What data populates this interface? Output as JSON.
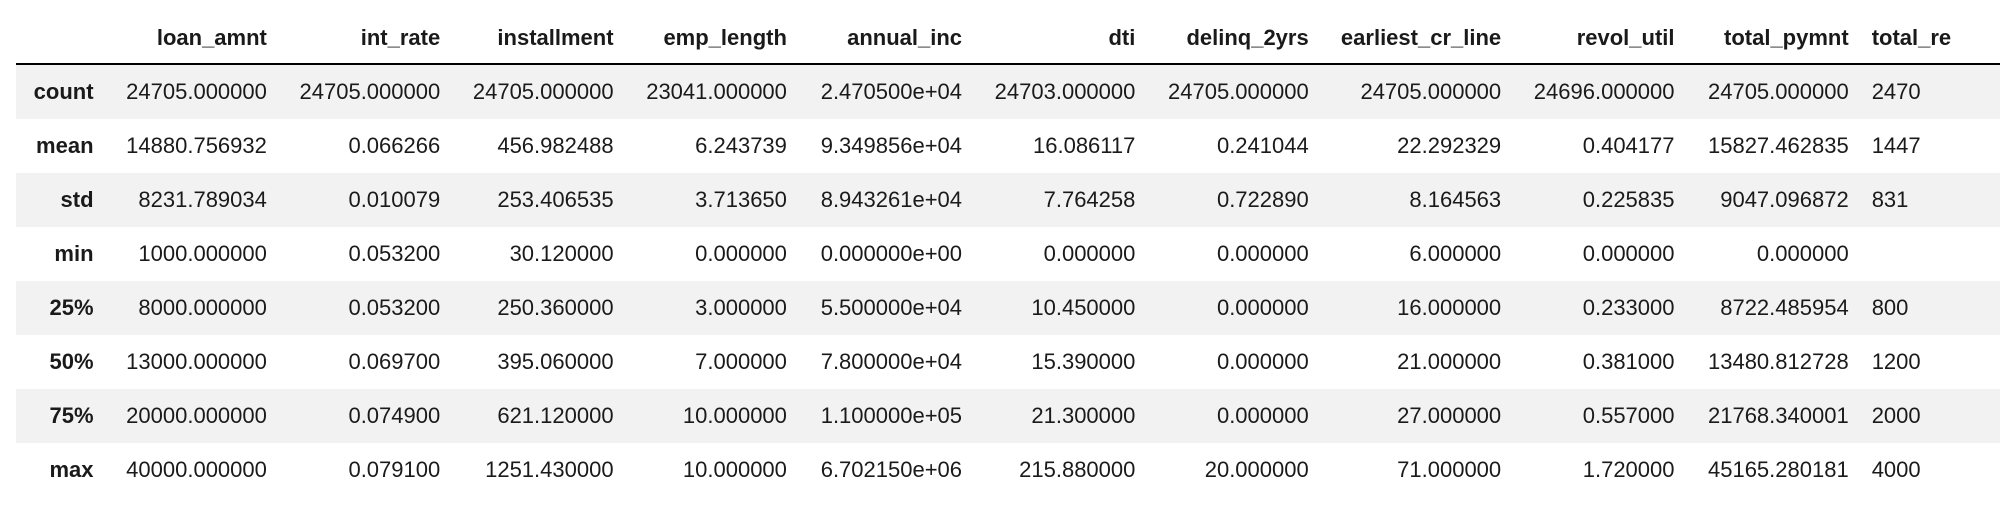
{
  "columns": [
    "",
    "loan_amnt",
    "int_rate",
    "installment",
    "emp_length",
    "annual_inc",
    "dti",
    "delinq_2yrs",
    "earliest_cr_line",
    "revol_util",
    "total_pymnt",
    "total_re"
  ],
  "rows": [
    {
      "label": "count",
      "cells": [
        "24705.000000",
        "24705.000000",
        "24705.000000",
        "23041.000000",
        "2.470500e+04",
        "24703.000000",
        "24705.000000",
        "24705.000000",
        "24696.000000",
        "24705.000000",
        "2470"
      ]
    },
    {
      "label": "mean",
      "cells": [
        "14880.756932",
        "0.066266",
        "456.982488",
        "6.243739",
        "9.349856e+04",
        "16.086117",
        "0.241044",
        "22.292329",
        "0.404177",
        "15827.462835",
        "1447"
      ]
    },
    {
      "label": "std",
      "cells": [
        "8231.789034",
        "0.010079",
        "253.406535",
        "3.713650",
        "8.943261e+04",
        "7.764258",
        "0.722890",
        "8.164563",
        "0.225835",
        "9047.096872",
        "831"
      ]
    },
    {
      "label": "min",
      "cells": [
        "1000.000000",
        "0.053200",
        "30.120000",
        "0.000000",
        "0.000000e+00",
        "0.000000",
        "0.000000",
        "6.000000",
        "0.000000",
        "0.000000",
        ""
      ]
    },
    {
      "label": "25%",
      "cells": [
        "8000.000000",
        "0.053200",
        "250.360000",
        "3.000000",
        "5.500000e+04",
        "10.450000",
        "0.000000",
        "16.000000",
        "0.233000",
        "8722.485954",
        "800"
      ]
    },
    {
      "label": "50%",
      "cells": [
        "13000.000000",
        "0.069700",
        "395.060000",
        "7.000000",
        "7.800000e+04",
        "15.390000",
        "0.000000",
        "21.000000",
        "0.381000",
        "13480.812728",
        "1200"
      ]
    },
    {
      "label": "75%",
      "cells": [
        "20000.000000",
        "0.074900",
        "621.120000",
        "10.000000",
        "1.100000e+05",
        "21.300000",
        "0.000000",
        "27.000000",
        "0.557000",
        "21768.340001",
        "2000"
      ]
    },
    {
      "label": "max",
      "cells": [
        "40000.000000",
        "0.079100",
        "1251.430000",
        "10.000000",
        "6.702150e+06",
        "215.880000",
        "20.000000",
        "71.000000",
        "1.720000",
        "45165.280181",
        "4000"
      ]
    }
  ]
}
